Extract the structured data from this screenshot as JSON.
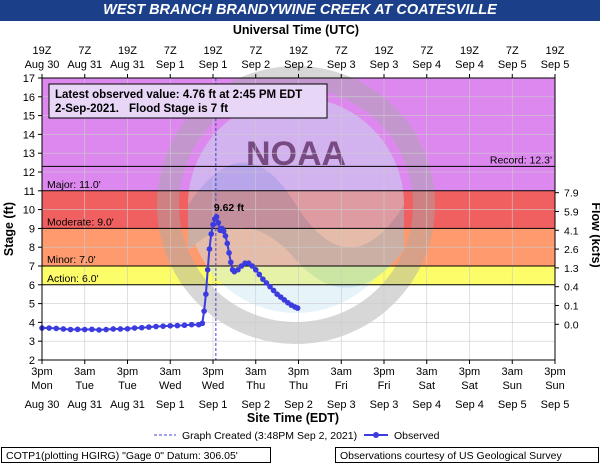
{
  "title": "WEST BRANCH BRANDYWINE CREEK AT COATESVILLE",
  "top_axis_title": "Universal Time (UTC)",
  "bottom_axis_title": "Site Time (EDT)",
  "left_axis_title": "Stage (ft)",
  "right_axis_title": "Flow (kcfs)",
  "info_box": {
    "line1": "Latest observed value: 4.76 ft at 2:45 PM EDT",
    "line2a": "2-Sep-2021.",
    "line2b": "Flood Stage is 7 ft"
  },
  "legend": {
    "graph_created": "Graph Created (3:48PM Sep 2, 2021)",
    "observed": "Observed"
  },
  "footer": {
    "left": "COTP1(plotting HGIRG) \"Gage 0\" Datum: 306.05'",
    "right": "Observations courtesy of US Geological Survey"
  },
  "peak_label": "9.62 ft",
  "colors": {
    "record_band": "#dd88ee",
    "major_band": "#f06060",
    "moderate_band": "#fe9a6e",
    "minor_band": "#fdd86a",
    "action_band": "#fdfd6a",
    "observed_line": "#3b3bdf",
    "title_bg": "#1c3f8a",
    "created_line": "#4444cc"
  },
  "chart_data": {
    "type": "line",
    "ylim": [
      2,
      17
    ],
    "y_ticks": [
      "2",
      "3",
      "4",
      "5",
      "6",
      "7",
      "8",
      "9",
      "10",
      "11",
      "12",
      "13",
      "14",
      "15",
      "16",
      "17"
    ],
    "flow_ticks": [
      {
        "stage": 3.9,
        "label": "0.0"
      },
      {
        "stage": 4.9,
        "label": "0.1"
      },
      {
        "stage": 5.9,
        "label": "0.4"
      },
      {
        "stage": 6.9,
        "label": "1.3"
      },
      {
        "stage": 7.9,
        "label": "2.6"
      },
      {
        "stage": 8.9,
        "label": "4.1"
      },
      {
        "stage": 9.9,
        "label": "5.9"
      },
      {
        "stage": 10.9,
        "label": "7.9"
      }
    ],
    "thresholds": [
      {
        "name": "Record",
        "label": "Record: 12.3'",
        "value": 12.3
      },
      {
        "name": "Major",
        "label": "Major: 11.0'",
        "value": 11.0
      },
      {
        "name": "Moderate",
        "label": "Moderate: 9.0'",
        "value": 9.0
      },
      {
        "name": "Minor",
        "label": "Minor: 7.0'",
        "value": 7.0
      },
      {
        "name": "Action",
        "label": "Action: 6.0'",
        "value": 6.0
      }
    ],
    "bottom_ticks": [
      {
        "time": "3pm",
        "day": "Mon",
        "date": "Aug 30"
      },
      {
        "time": "3am",
        "day": "Tue",
        "date": "Aug 31"
      },
      {
        "time": "3pm",
        "day": "Tue",
        "date": "Aug 31"
      },
      {
        "time": "3am",
        "day": "Wed",
        "date": "Sep 1"
      },
      {
        "time": "3pm",
        "day": "Wed",
        "date": "Sep 1"
      },
      {
        "time": "3am",
        "day": "Thu",
        "date": "Sep 2"
      },
      {
        "time": "3pm",
        "day": "Thu",
        "date": "Sep 2"
      },
      {
        "time": "3am",
        "day": "Fri",
        "date": "Sep 3"
      },
      {
        "time": "3pm",
        "day": "Fri",
        "date": "Sep 3"
      },
      {
        "time": "3am",
        "day": "Sat",
        "date": "Sep 4"
      },
      {
        "time": "3pm",
        "day": "Sat",
        "date": "Sep 4"
      },
      {
        "time": "3am",
        "day": "Sun",
        "date": "Sep 5"
      },
      {
        "time": "3pm",
        "day": "Sun",
        "date": "Sep 5"
      }
    ],
    "top_ticks": [
      {
        "time": "19Z",
        "date": "Aug 30"
      },
      {
        "time": "7Z",
        "date": "Aug 31"
      },
      {
        "time": "19Z",
        "date": "Aug 31"
      },
      {
        "time": "7Z",
        "date": "Sep 1"
      },
      {
        "time": "19Z",
        "date": "Sep 1"
      },
      {
        "time": "7Z",
        "date": "Sep 2"
      },
      {
        "time": "19Z",
        "date": "Sep 2"
      },
      {
        "time": "7Z",
        "date": "Sep 3"
      },
      {
        "time": "19Z",
        "date": "Sep 3"
      },
      {
        "time": "7Z",
        "date": "Sep 4"
      },
      {
        "time": "19Z",
        "date": "Sep 4"
      },
      {
        "time": "7Z",
        "date": "Sep 5"
      },
      {
        "time": "19Z",
        "date": "Sep 5"
      }
    ],
    "x_unit": "hours after 3pm EDT Aug 30",
    "x_range": [
      0,
      144
    ],
    "graph_created_at": 48.8,
    "series": [
      {
        "name": "Observed",
        "x": [
          0,
          2,
          4,
          6,
          8,
          10,
          12,
          14,
          16,
          18,
          20,
          22,
          24,
          26,
          28,
          30,
          32,
          34,
          36,
          38,
          40,
          42,
          44,
          45,
          45.5,
          46,
          46.5,
          47,
          47.5,
          48,
          48.5,
          49,
          49.5,
          50,
          50.5,
          51,
          51.5,
          52,
          52.5,
          53,
          53.5,
          54,
          55,
          56,
          57,
          58,
          59,
          60,
          61,
          62,
          63,
          64,
          65,
          66,
          67,
          68,
          69,
          70,
          71,
          71.75
        ],
        "y": [
          3.7,
          3.7,
          3.68,
          3.65,
          3.62,
          3.63,
          3.62,
          3.63,
          3.6,
          3.62,
          3.65,
          3.65,
          3.66,
          3.7,
          3.72,
          3.75,
          3.78,
          3.8,
          3.82,
          3.83,
          3.85,
          3.88,
          3.88,
          3.95,
          4.6,
          5.5,
          6.8,
          7.9,
          8.7,
          9.2,
          9.5,
          9.62,
          9.3,
          8.9,
          9.0,
          8.85,
          8.6,
          8.2,
          7.7,
          7.2,
          6.8,
          6.7,
          6.8,
          7.0,
          7.15,
          7.15,
          7.0,
          6.8,
          6.55,
          6.3,
          6.1,
          5.9,
          5.7,
          5.5,
          5.35,
          5.2,
          5.05,
          4.92,
          4.82,
          4.76
        ]
      }
    ]
  }
}
